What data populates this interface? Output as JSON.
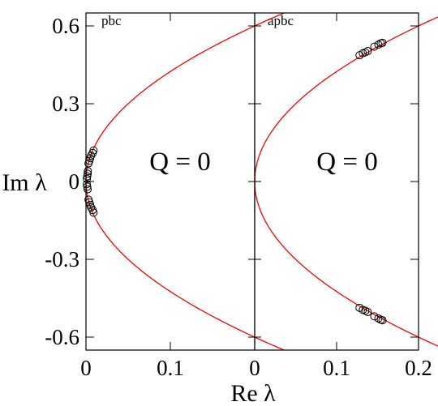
{
  "chart_data": {
    "type": "scatter",
    "ylabel": "Im λ",
    "xlabel": "Re λ",
    "ylim": [
      -0.65,
      0.65
    ],
    "yticks": [
      "0.6",
      "0.3",
      "0",
      "-0.3",
      "-0.6"
    ],
    "ytick_values": [
      0.6,
      0.3,
      0,
      -0.3,
      -0.6
    ],
    "colors": {
      "curve": "#ff0000",
      "points": "#000000",
      "frame": "#000000"
    },
    "panels": [
      {
        "tag": "pbc",
        "annotation": "Q = 0",
        "xlim": [
          0,
          0.2
        ],
        "x_reversed": false,
        "xticks": [
          "0",
          "0.1"
        ],
        "xtick_values": [
          0,
          0.1
        ],
        "points": [
          [
            0.001,
            0.01
          ],
          [
            0.0015,
            0.02
          ],
          [
            0.002,
            0.03
          ],
          [
            0.0022,
            0.04
          ],
          [
            0.003,
            0.07
          ],
          [
            0.004,
            0.08
          ],
          [
            0.005,
            0.09
          ],
          [
            0.006,
            0.1
          ],
          [
            0.008,
            0.11
          ],
          [
            0.009,
            0.12
          ],
          [
            0.001,
            -0.01
          ],
          [
            0.0015,
            -0.02
          ],
          [
            0.002,
            -0.03
          ],
          [
            0.003,
            -0.07
          ],
          [
            0.004,
            -0.08
          ],
          [
            0.005,
            -0.09
          ],
          [
            0.006,
            -0.1
          ],
          [
            0.008,
            -0.11
          ],
          [
            0.009,
            -0.12
          ]
        ]
      },
      {
        "tag": "apbc",
        "annotation": "Q = 0",
        "xlim": [
          0,
          0.2
        ],
        "x_reversed": false,
        "xticks": [
          "0",
          "0.1",
          "0.2"
        ],
        "xtick_values": [
          0,
          0.1,
          0.2
        ],
        "points": [
          [
            0.128,
            0.487
          ],
          [
            0.132,
            0.495
          ],
          [
            0.135,
            0.498
          ],
          [
            0.138,
            0.503
          ],
          [
            0.146,
            0.52
          ],
          [
            0.151,
            0.528
          ],
          [
            0.154,
            0.533
          ],
          [
            0.156,
            0.535
          ],
          [
            0.128,
            -0.487
          ],
          [
            0.132,
            -0.495
          ],
          [
            0.135,
            -0.498
          ],
          [
            0.138,
            -0.503
          ],
          [
            0.146,
            -0.52
          ],
          [
            0.151,
            -0.528
          ],
          [
            0.154,
            -0.533
          ],
          [
            0.156,
            -0.535
          ]
        ]
      }
    ]
  }
}
